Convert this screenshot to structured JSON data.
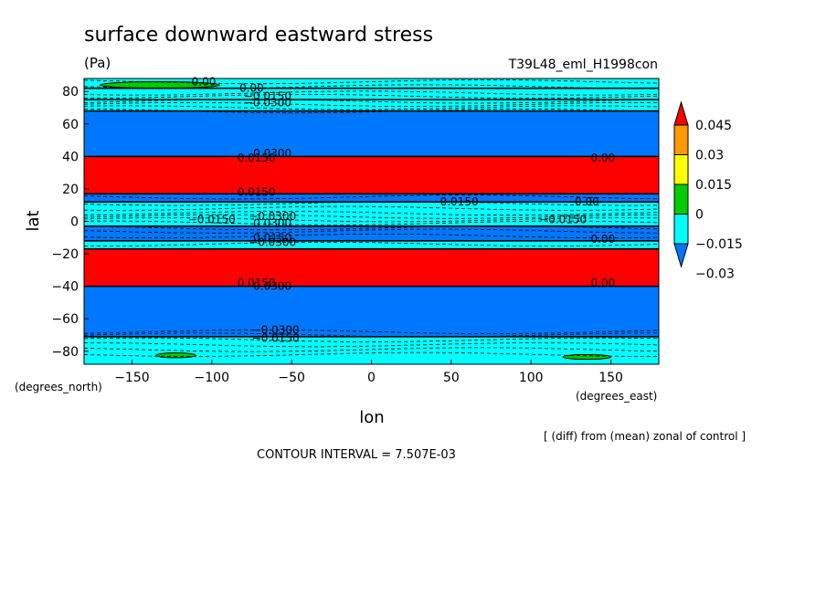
{
  "chart_data": {
    "type": "contour",
    "title": "surface downward eastward stress",
    "units": "(Pa)",
    "run_label": "T39L48_eml_H1998con",
    "xlabel": "lon",
    "ylabel": "lat",
    "x_units": "(degrees_east)",
    "y_units": "(degrees_north)",
    "xlim": [
      -180,
      180
    ],
    "ylim": [
      -88,
      88
    ],
    "x_ticks": [
      -150,
      -100,
      -50,
      0,
      50,
      100,
      150
    ],
    "y_ticks": [
      -80,
      -60,
      -40,
      -20,
      0,
      20,
      40,
      60,
      80
    ],
    "note": "[ (diff) from (mean) zonal of control ]",
    "contour_interval": "CONTOUR INTERVAL = 7.507E-03",
    "colorbar": {
      "labels": [
        "0.045",
        "0.03",
        "0.015",
        "0",
        "−0.015",
        "−0.03"
      ],
      "colors": [
        "#0077ff",
        "#00ffff",
        "#00cc00",
        "#ffff00",
        "#ff9900",
        "#ff0000"
      ]
    },
    "bands": [
      {
        "lat": [
          82,
          88
        ],
        "color": "#00ffff"
      },
      {
        "lat": [
          75,
          82
        ],
        "color": "#00ffff"
      },
      {
        "lat": [
          68,
          75
        ],
        "color": "#00ffff"
      },
      {
        "lat": [
          40,
          68
        ],
        "color": "#0077ff"
      },
      {
        "lat": [
          17,
          40
        ],
        "color": "#ff0000"
      },
      {
        "lat": [
          12,
          17
        ],
        "color": "#0077ff"
      },
      {
        "lat": [
          -3,
          12
        ],
        "color": "#00ffff"
      },
      {
        "lat": [
          -12,
          -3
        ],
        "color": "#0077ff"
      },
      {
        "lat": [
          -17,
          -12
        ],
        "color": "#00ffff"
      },
      {
        "lat": [
          -40,
          -17
        ],
        "color": "#ff0000"
      },
      {
        "lat": [
          -71,
          -40
        ],
        "color": "#0077ff"
      },
      {
        "lat": [
          -88,
          -71
        ],
        "color": "#00ffff"
      }
    ],
    "green_patches": [
      {
        "lon": [
          -170,
          -95
        ],
        "lat": [
          82,
          86
        ]
      },
      {
        "lon": [
          -135,
          -110
        ],
        "lat": [
          -84,
          -81
        ]
      },
      {
        "lon": [
          120,
          150
        ],
        "lat": [
          -85,
          -82
        ]
      }
    ],
    "contour_labels": [
      {
        "text": "0.00",
        "lon": -105,
        "lat": 86
      },
      {
        "text": "0.00",
        "lon": -75,
        "lat": 82
      },
      {
        "text": "−0.0150",
        "lon": -65,
        "lat": 77
      },
      {
        "text": "−0.0300",
        "lon": -65,
        "lat": 73
      },
      {
        "text": "0.0300",
        "lon": -62,
        "lat": 42
      },
      {
        "text": "0.0150",
        "lon": -72,
        "lat": 39
      },
      {
        "text": "0.00",
        "lon": 145,
        "lat": 39
      },
      {
        "text": "0.0150",
        "lon": -72,
        "lat": 18
      },
      {
        "text": "0.0150",
        "lon": 55,
        "lat": 12
      },
      {
        "text": "0.00",
        "lon": 135,
        "lat": 12
      },
      {
        "text": "−0.0150",
        "lon": -100,
        "lat": 1
      },
      {
        "text": "−0.0300",
        "lon": -62,
        "lat": 3
      },
      {
        "text": "−0.0150",
        "lon": 120,
        "lat": 1
      },
      {
        "text": "0.0300",
        "lon": -62,
        "lat": -1
      },
      {
        "text": "0.0150",
        "lon": -62,
        "lat": -10
      },
      {
        "text": "−0.0300",
        "lon": -62,
        "lat": -13
      },
      {
        "text": "0.00",
        "lon": 145,
        "lat": -11
      },
      {
        "text": "0.0300",
        "lon": -62,
        "lat": -40
      },
      {
        "text": "0.0150",
        "lon": -72,
        "lat": -38
      },
      {
        "text": "0.00",
        "lon": 145,
        "lat": -38
      },
      {
        "text": "−0.0300",
        "lon": -60,
        "lat": -67
      },
      {
        "text": "−0.0150",
        "lon": -60,
        "lat": -72
      }
    ]
  }
}
